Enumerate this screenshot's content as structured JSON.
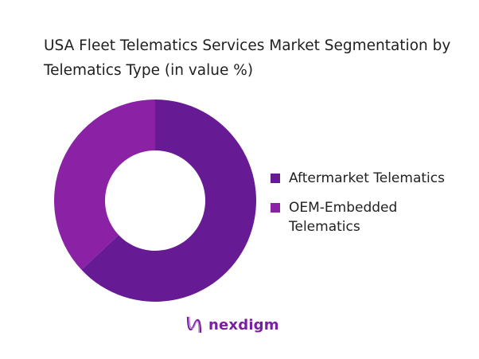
{
  "chart_data": {
    "type": "pie",
    "variant": "donut",
    "title": "USA Fleet Telematics Services Market Segmentation by Telematics Type (in value %)",
    "categories": [
      "Aftermarket Telematics",
      "OEM-Embedded Telematics"
    ],
    "values": [
      63,
      37
    ],
    "colors": [
      "#661a94",
      "#8b22a6"
    ],
    "legend": "right"
  },
  "logo": {
    "text": "nexdigm",
    "color": "#7b1fa2"
  }
}
